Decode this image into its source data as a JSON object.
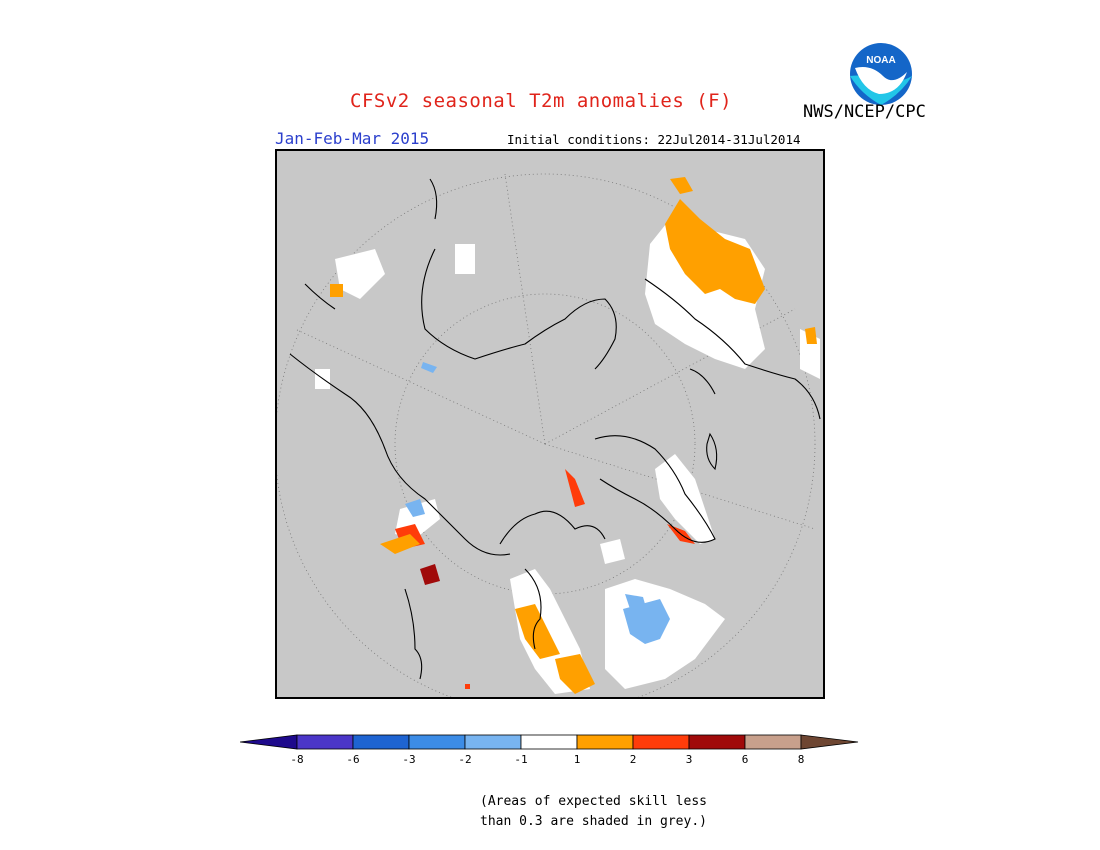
{
  "header": {
    "title": "CFSv2 seasonal T2m anomalies (F)",
    "agency": "NWS/NCEP/CPC",
    "season": "Jan-Feb-Mar 2015",
    "initial_conditions": "Initial conditions: 22Jul2014-31Jul2014"
  },
  "logo": {
    "text": "NOAA",
    "colors": {
      "sky": "#1466c8",
      "bird": "#ffffff",
      "sea": "#22c6e8"
    }
  },
  "map": {
    "projection": "north-polar-stereographic",
    "background_color": "#c8c8c8",
    "land_outline_color": "#000000",
    "graticule": "dotted"
  },
  "colorbar": {
    "colors": [
      "#1e0a8c",
      "#4b36c8",
      "#1e64d2",
      "#3c8ce6",
      "#78b4f0",
      "#ffffff",
      "#ffa000",
      "#ff3c0a",
      "#a00a0a",
      "#c8a08c",
      "#6e4632"
    ],
    "labels": [
      "-8",
      "-6",
      "-3",
      "-2",
      "-1",
      "1",
      "2",
      "3",
      "6",
      "8"
    ]
  },
  "note": {
    "line1": "(Areas of expected skill less",
    "line2": "than 0.3 are shaded in grey.)"
  }
}
